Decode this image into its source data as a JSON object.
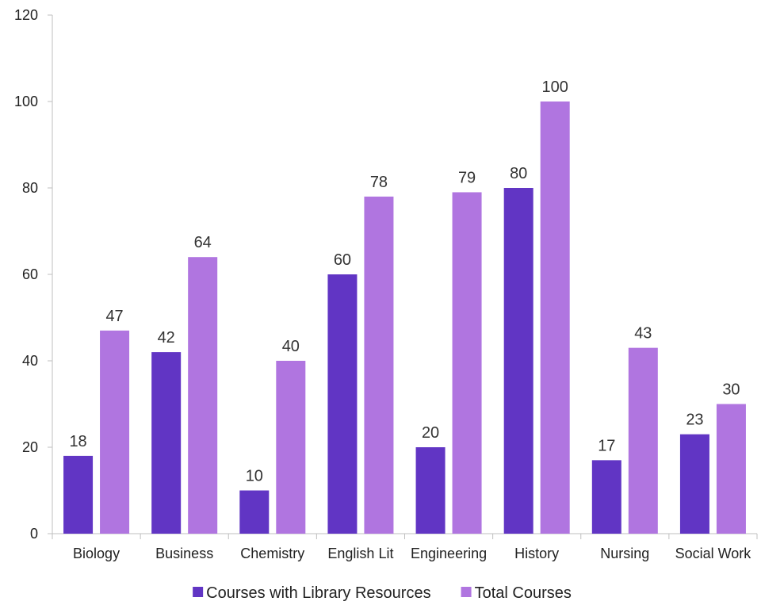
{
  "chart_data": {
    "type": "bar",
    "title": "",
    "xlabel": "",
    "ylabel": "",
    "ylim": [
      0,
      120
    ],
    "yticks": [
      0,
      20,
      40,
      60,
      80,
      100,
      120
    ],
    "grid": false,
    "legend_position": "bottom",
    "categories": [
      "Biology",
      "Business",
      "Chemistry",
      "English Lit",
      "Engineering",
      "History",
      "Nursing",
      "Social Work"
    ],
    "series": [
      {
        "name": "Courses with Library Resources",
        "color": "#6135c4",
        "values": [
          18,
          42,
          10,
          60,
          20,
          80,
          17,
          23
        ]
      },
      {
        "name": "Total Courses",
        "color": "#b075e0",
        "values": [
          47,
          64,
          40,
          78,
          79,
          100,
          43,
          30
        ]
      }
    ]
  }
}
